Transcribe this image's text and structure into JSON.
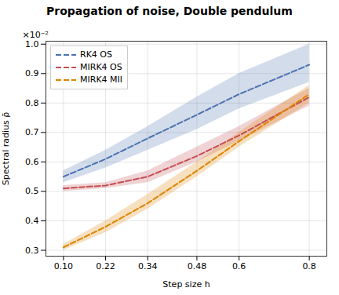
{
  "chart_data": {
    "type": "line",
    "title": "Propagation of noise, Double pendulum",
    "xlabel": "Step size h",
    "ylabel": "Spectral radius ρ̄",
    "annotation": "×10⁻²",
    "x": [
      0.1,
      0.22,
      0.34,
      0.48,
      0.6,
      0.8
    ],
    "series": [
      {
        "name": "RK4 OS",
        "color": "#4C72B0",
        "line_style": "dashed",
        "values": [
          0.0055,
          0.0061,
          0.0068,
          0.0076,
          0.0083,
          0.0093
        ],
        "lower": [
          0.0053,
          0.0058,
          0.0064,
          0.0071,
          0.0078,
          0.0087
        ],
        "upper": [
          0.0057,
          0.0064,
          0.0072,
          0.0082,
          0.009,
          0.01
        ]
      },
      {
        "name": "MIRK4 OS",
        "color": "#C44E52",
        "line_style": "dashed",
        "values": [
          0.0051,
          0.0052,
          0.0055,
          0.0062,
          0.0069,
          0.0082
        ],
        "lower": [
          0.005,
          0.0051,
          0.0053,
          0.006,
          0.0067,
          0.0079
        ],
        "upper": [
          0.0052,
          0.0053,
          0.0057,
          0.0065,
          0.0072,
          0.0085
        ]
      },
      {
        "name": "MIRK4 MII",
        "color": "#DD8500",
        "line_style": "dashed",
        "values": [
          0.0031,
          0.0038,
          0.0046,
          0.0057,
          0.0067,
          0.0083
        ],
        "lower": [
          0.003,
          0.0036,
          0.0044,
          0.0055,
          0.0065,
          0.008
        ],
        "upper": [
          0.0032,
          0.004,
          0.0049,
          0.006,
          0.007,
          0.0086
        ]
      }
    ],
    "xlim": [
      0.05,
      0.85
    ],
    "xticks": [
      {
        "value": 0.1,
        "label": "0.10"
      },
      0.22,
      0.34,
      0.48,
      0.6,
      0.8
    ],
    "ylim": [
      0.0028,
      0.0101
    ],
    "yticks": [
      {
        "value": 0.003,
        "label": "0.3"
      },
      {
        "value": 0.004,
        "label": "0.4"
      },
      {
        "value": 0.005,
        "label": "0.5"
      },
      {
        "value": 0.006,
        "label": "0.6"
      },
      {
        "value": 0.007,
        "label": "0.7"
      },
      {
        "value": 0.008,
        "label": "0.8"
      },
      {
        "value": 0.009,
        "label": "0.9"
      },
      {
        "value": 0.01,
        "label": "1.0"
      }
    ],
    "grid": true,
    "legend": "upper left"
  }
}
